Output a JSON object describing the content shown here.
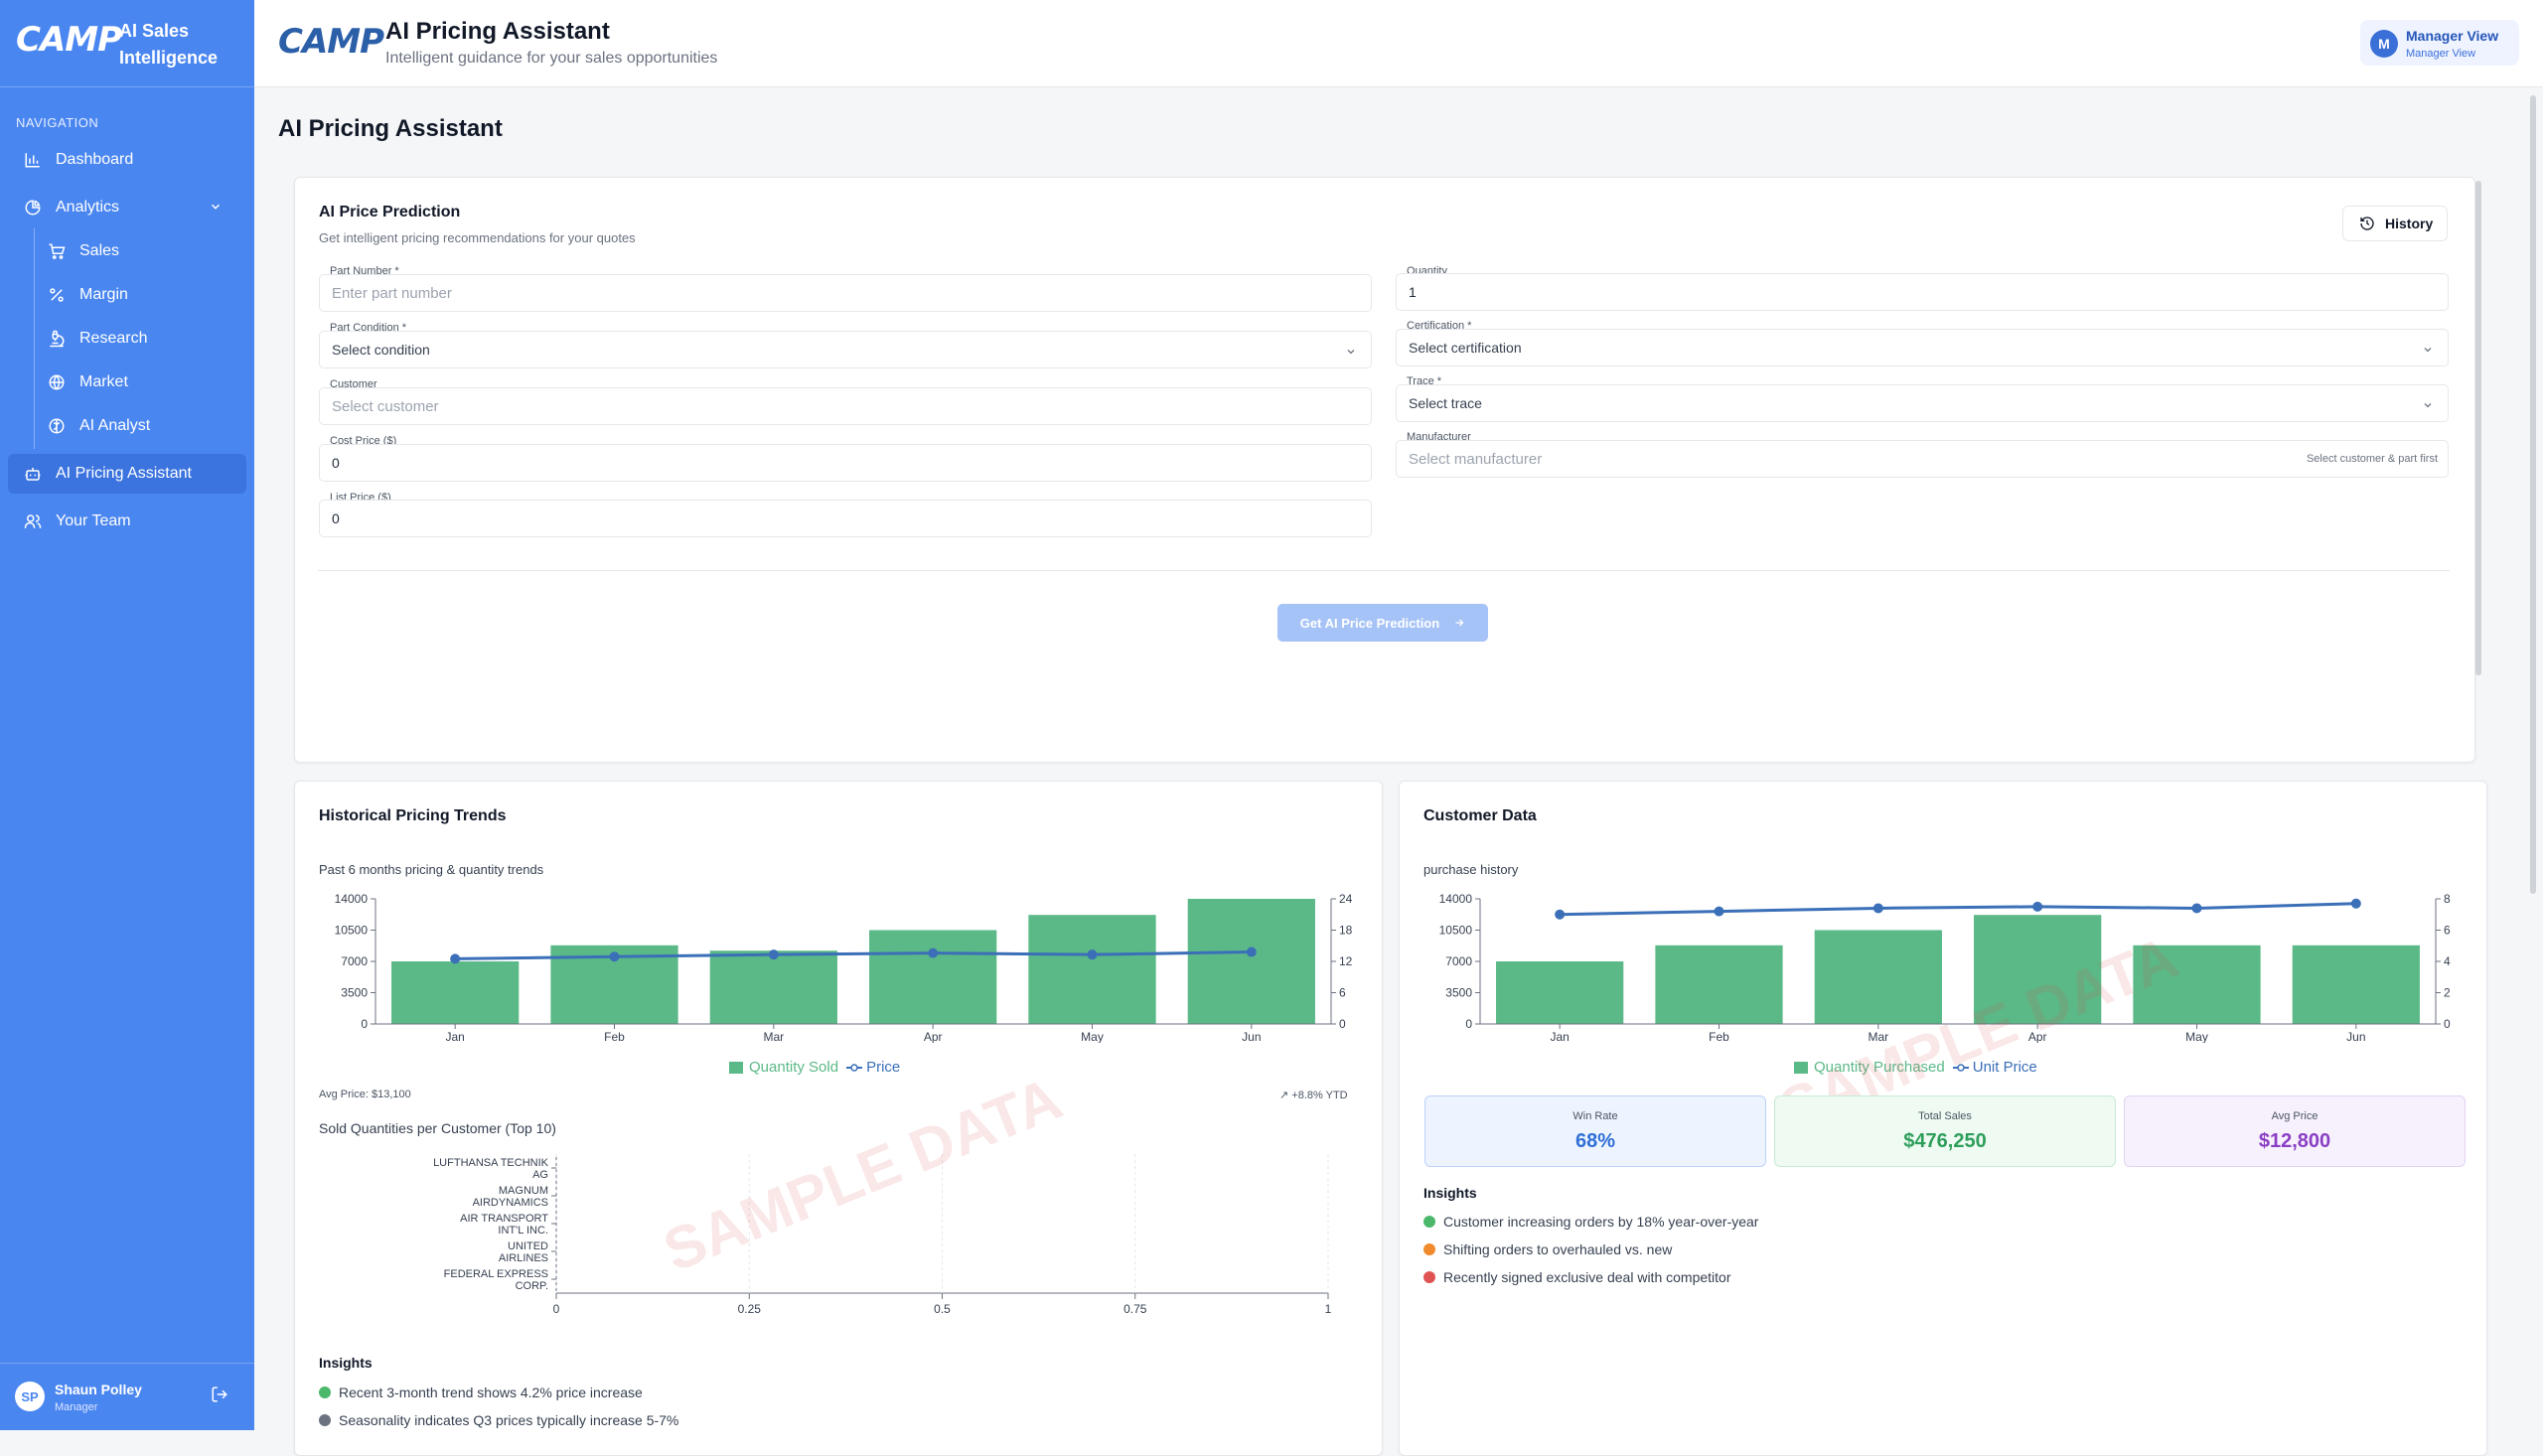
{
  "brand": {
    "logo": "CAMP",
    "app_title": "AI Sales Intelligence"
  },
  "sidebar": {
    "section_label": "NAVIGATION",
    "items": [
      {
        "label": "Dashboard",
        "icon": "bar-chart-icon"
      },
      {
        "label": "Analytics",
        "icon": "pie-chart-icon"
      },
      {
        "label": "Sales",
        "icon": "cart-icon"
      },
      {
        "label": "Margin",
        "icon": "percent-icon"
      },
      {
        "label": "Research",
        "icon": "flask-icon"
      },
      {
        "label": "Market",
        "icon": "globe-icon"
      },
      {
        "label": "AI Analyst",
        "icon": "brain-icon"
      },
      {
        "label": "AI Pricing Assistant",
        "icon": "bot-icon",
        "active": true
      },
      {
        "label": "Your Team",
        "icon": "users-icon"
      }
    ],
    "user": {
      "initials": "SP",
      "name": "Shaun Polley",
      "role": "Manager"
    }
  },
  "header": {
    "logo": "CAMP",
    "title": "AI Pricing Assistant",
    "subtitle": "Intelligent guidance for your sales opportunities",
    "view_initial": "M",
    "view_title": "Manager View",
    "view_sub": "Manager View"
  },
  "page": {
    "title": "AI Pricing Assistant"
  },
  "prediction": {
    "title": "AI Price Prediction",
    "subtitle": "Get intelligent pricing recommendations for your quotes",
    "history_label": "History",
    "fields": {
      "part_number": {
        "label": "Part Number *",
        "placeholder": "Enter part number"
      },
      "part_condition": {
        "label": "Part Condition *",
        "placeholder": "Select condition"
      },
      "customer": {
        "label": "Customer",
        "placeholder": "Select customer"
      },
      "cost_price": {
        "label": "Cost Price ($)",
        "value": "0"
      },
      "list_price": {
        "label": "List Price ($)",
        "value": "0"
      },
      "quantity": {
        "label": "Quantity",
        "value": "1"
      },
      "certification": {
        "label": "Certification *",
        "placeholder": "Select certification"
      },
      "trace": {
        "label": "Trace *",
        "placeholder": "Select trace"
      },
      "manufacturer": {
        "label": "Manufacturer",
        "placeholder": "Select manufacturer",
        "hint": "Select customer & part first"
      }
    },
    "submit_label": "Get AI Price Prediction"
  },
  "historical": {
    "title": "Historical Pricing Trends",
    "chart_label": "Past 6 months pricing & quantity trends",
    "legend_bar": "Quantity Sold",
    "legend_line": "Price",
    "avg_price": "Avg Price: $13,100",
    "ytd": "↗ +8.8% YTD",
    "customer_chart_title": "Sold Quantities per Customer (Top 10)",
    "insights_title": "Insights",
    "insights": [
      {
        "text": "Recent 3-month trend shows 4.2% price increase",
        "color": "#4cb86b"
      },
      {
        "text": "Seasonality indicates Q3 prices typically increase 5-7%",
        "color": "#6b7280"
      }
    ],
    "watermark": "SAMPLE DATA"
  },
  "customer_data": {
    "title": "Customer Data",
    "chart_label": "purchase history",
    "legend_bar": "Quantity Purchased",
    "legend_line": "Unit Price",
    "metrics": [
      {
        "label": "Win Rate",
        "value": "68%",
        "color": "#2f6fd6",
        "bg": "#eef4ff",
        "border": "#bcd2f7"
      },
      {
        "label": "Total Sales",
        "value": "$476,250",
        "color": "#2e9e5b",
        "bg": "#eefaf2",
        "border": "#c7ebd3"
      },
      {
        "label": "Avg Price",
        "value": "$12,800",
        "color": "#8a3fc4",
        "bg": "#f7f1fd",
        "border": "#e2d2f3"
      }
    ],
    "insights_title": "Insights",
    "insights": [
      {
        "text": "Customer increasing orders by 18% year-over-year",
        "color": "#4cb86b"
      },
      {
        "text": "Shifting orders to overhauled vs. new",
        "color": "#f08a2c"
      },
      {
        "text": "Recently signed exclusive deal with competitor",
        "color": "#e05353"
      }
    ],
    "watermark": "SAMPLE DATA"
  },
  "colors": {
    "bar": "#5bb987",
    "line": "#3b6fb8",
    "sidebar": "#4a86f0"
  },
  "chart_data": [
    {
      "type": "bar",
      "title": "Past 6 months pricing & quantity trends",
      "categories": [
        "Jan",
        "Feb",
        "Mar",
        "Apr",
        "May",
        "Jun"
      ],
      "series": [
        {
          "name": "Quantity Sold",
          "axis": "left",
          "values": [
            7000,
            8800,
            8200,
            10500,
            12200,
            14000
          ]
        },
        {
          "name": "Price",
          "axis": "right",
          "type": "line",
          "values": [
            12.5,
            12.9,
            13.3,
            13.6,
            13.3,
            13.8
          ]
        }
      ],
      "ylim": [
        0,
        14000
      ],
      "y2lim": [
        0,
        24
      ],
      "yticks": [
        "0",
        "3500",
        "7000",
        "10500",
        "14000"
      ],
      "y2ticks": [
        "0",
        "6",
        "12",
        "18",
        "24"
      ]
    },
    {
      "type": "bar",
      "title": "purchase history",
      "categories": [
        "Jan",
        "Feb",
        "Mar",
        "Apr",
        "May",
        "Jun"
      ],
      "series": [
        {
          "name": "Quantity Purchased",
          "axis": "left",
          "values": [
            7000,
            8800,
            10500,
            12200,
            8800,
            8800
          ]
        },
        {
          "name": "Unit Price",
          "axis": "right",
          "type": "line",
          "values": [
            7.0,
            7.2,
            7.4,
            7.5,
            7.4,
            7.7
          ]
        }
      ],
      "ylim": [
        0,
        14000
      ],
      "y2lim": [
        0,
        8
      ],
      "yticks": [
        "0",
        "3500",
        "7000",
        "10500",
        "14000"
      ],
      "y2ticks": [
        "0",
        "2",
        "4",
        "6",
        "8"
      ]
    },
    {
      "type": "bar",
      "orientation": "horizontal",
      "title": "Sold Quantities per Customer (Top 10)",
      "categories": [
        "LUFTHANSA TECHNIK AG",
        "MAGNUM AIRDYNAMICS",
        "AIR TRANSPORT INT'L INC.",
        "UNITED AIRLINES",
        "FEDERAL EXPRESS CORP."
      ],
      "values": [
        0,
        0,
        0,
        0,
        0
      ],
      "xlim": [
        0,
        1
      ],
      "xticks": [
        "0",
        "0.25",
        "0.5",
        "0.75",
        "1"
      ]
    }
  ]
}
